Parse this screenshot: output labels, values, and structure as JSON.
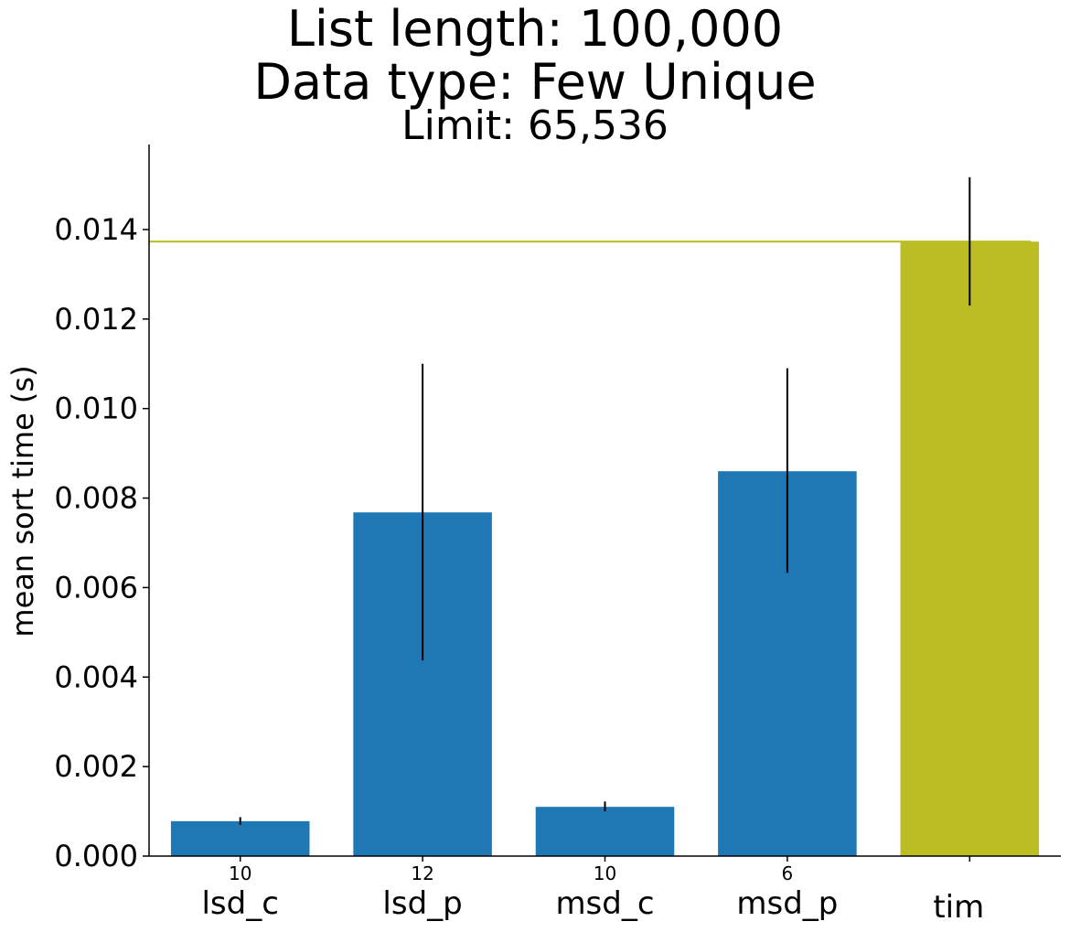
{
  "chart_data": {
    "type": "bar",
    "title_lines": [
      "List length: 100,000",
      "Data type: Few Unique"
    ],
    "subtitle": "Limit: 65,536",
    "ylabel": "mean sort time (s)",
    "xlabel": "",
    "ylim": [
      0,
      0.0159
    ],
    "yticks": [
      0.0,
      0.002,
      0.004,
      0.006,
      0.008,
      0.01,
      0.012,
      0.014
    ],
    "ytick_labels": [
      "0.000",
      "0.002",
      "0.004",
      "0.006",
      "0.008",
      "0.010",
      "0.012",
      "0.014"
    ],
    "categories": [
      "lsd_c",
      "lsd_p",
      "msd_c",
      "msd_p",
      "tim"
    ],
    "values": [
      0.00078,
      0.00768,
      0.0011,
      0.0086,
      0.01373
    ],
    "error_low": [
      0.0007,
      0.00437,
      0.001,
      0.00633,
      0.0123
    ],
    "error_high": [
      0.00087,
      0.011,
      0.00122,
      0.0109,
      0.01517
    ],
    "bar_annotations": [
      "10",
      "12",
      "10",
      "6",
      ""
    ],
    "bar_colors": [
      "#1f77b4",
      "#1f77b4",
      "#1f77b4",
      "#1f77b4",
      "#bcbd22"
    ],
    "reference_line": {
      "value": 0.01373,
      "color": "#bcbd22"
    },
    "grid": false
  }
}
